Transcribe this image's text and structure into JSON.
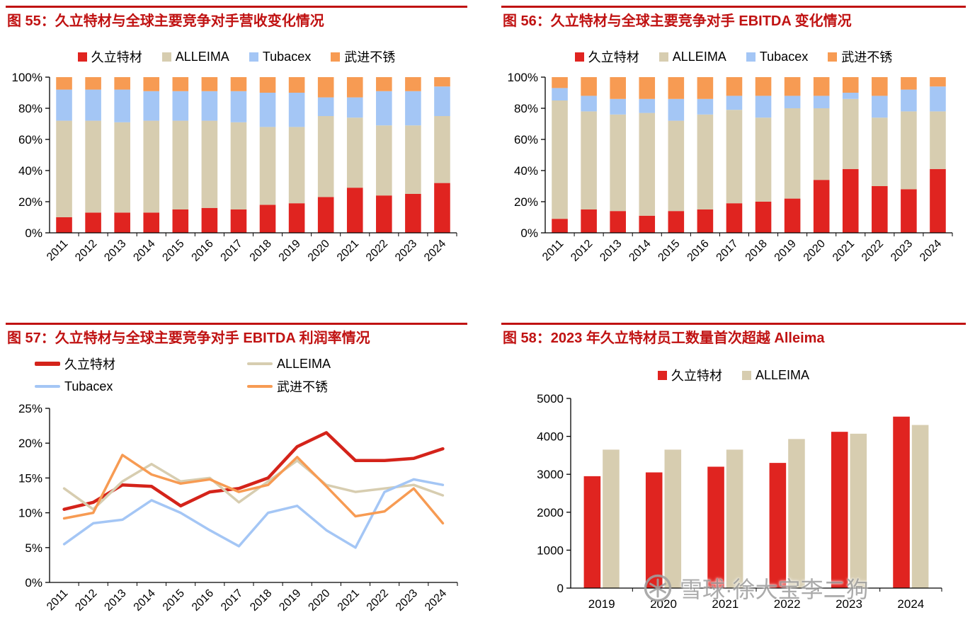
{
  "watermark": {
    "text": "雪球·徐大宝李二狗"
  },
  "chart_data": [
    {
      "type": "bar",
      "stacked": true,
      "title": "图 55：久立特材与全球主要竞争对手营收变化情况",
      "categories": [
        "2011",
        "2012",
        "2013",
        "2014",
        "2015",
        "2016",
        "2017",
        "2018",
        "2019",
        "2020",
        "2021",
        "2022",
        "2023",
        "2024"
      ],
      "series": [
        {
          "name": "久立特材",
          "key": "jiuli",
          "color": "#e02420",
          "values": [
            10,
            13,
            13,
            13,
            15,
            16,
            15,
            18,
            19,
            23,
            29,
            24,
            25,
            32
          ]
        },
        {
          "name": "ALLEIMA",
          "key": "alleima",
          "color": "#d7cdb0",
          "values": [
            62,
            59,
            58,
            59,
            57,
            56,
            56,
            50,
            49,
            52,
            45,
            45,
            44,
            43
          ]
        },
        {
          "name": "Tubacex",
          "key": "tubacex",
          "color": "#a4c6f5",
          "values": [
            20,
            20,
            21,
            19,
            19,
            19,
            20,
            22,
            22,
            12,
            13,
            22,
            22,
            19
          ]
        },
        {
          "name": "武进不锈",
          "key": "wujin",
          "color": "#f79b53",
          "values": [
            8,
            8,
            8,
            9,
            9,
            9,
            9,
            10,
            10,
            13,
            13,
            9,
            9,
            6
          ]
        }
      ],
      "ylim": [
        0,
        100
      ],
      "yticks": [
        0,
        20,
        40,
        60,
        80,
        100
      ],
      "ytick_suffix": "%",
      "legend_position": "top",
      "grid": false
    },
    {
      "type": "bar",
      "stacked": true,
      "title": "图 56：久立特材与全球主要竞争对手 EBITDA 变化情况",
      "categories": [
        "2011",
        "2012",
        "2013",
        "2014",
        "2015",
        "2016",
        "2017",
        "2018",
        "2019",
        "2020",
        "2021",
        "2022",
        "2023",
        "2024"
      ],
      "series": [
        {
          "name": "久立特材",
          "key": "jiuli",
          "color": "#e02420",
          "values": [
            9,
            15,
            14,
            11,
            14,
            15,
            19,
            20,
            22,
            34,
            41,
            30,
            28,
            41
          ]
        },
        {
          "name": "ALLEIMA",
          "key": "alleima",
          "color": "#d7cdb0",
          "values": [
            76,
            63,
            62,
            66,
            58,
            61,
            60,
            54,
            58,
            46,
            45,
            44,
            50,
            37
          ]
        },
        {
          "name": "Tubacex",
          "key": "tubacex",
          "color": "#a4c6f5",
          "values": [
            8,
            10,
            10,
            9,
            14,
            10,
            9,
            14,
            8,
            8,
            4,
            14,
            14,
            16
          ]
        },
        {
          "name": "武进不锈",
          "key": "wujin",
          "color": "#f79b53",
          "values": [
            7,
            12,
            14,
            14,
            14,
            14,
            12,
            12,
            12,
            12,
            10,
            12,
            8,
            6
          ]
        }
      ],
      "ylim": [
        0,
        100
      ],
      "yticks": [
        0,
        20,
        40,
        60,
        80,
        100
      ],
      "ytick_suffix": "%",
      "legend_position": "top",
      "grid": false
    },
    {
      "type": "line",
      "title": "图 57：久立特材与全球主要竞争对手 EBITDA 利润率情况",
      "categories": [
        "2011",
        "2012",
        "2013",
        "2014",
        "2015",
        "2016",
        "2017",
        "2018",
        "2019",
        "2020",
        "2021",
        "2022",
        "2023",
        "2024"
      ],
      "series": [
        {
          "name": "久立特材",
          "key": "jiuli",
          "color": "#d4231a",
          "width": 4.5,
          "values": [
            10.5,
            11.5,
            14.0,
            13.8,
            11.0,
            13.0,
            13.5,
            15.0,
            19.5,
            21.5,
            17.5,
            17.5,
            17.8,
            19.2
          ]
        },
        {
          "name": "ALLEIMA",
          "key": "alleima",
          "color": "#d7cdb0",
          "width": 3.5,
          "values": [
            13.5,
            10.5,
            14.5,
            17.0,
            14.5,
            15.0,
            11.5,
            14.5,
            17.5,
            14.0,
            13.0,
            13.5,
            14.0,
            12.5
          ]
        },
        {
          "name": "Tubacex",
          "key": "tubacex",
          "color": "#a4c6f5",
          "width": 3.5,
          "values": [
            5.5,
            8.5,
            9.0,
            11.8,
            10.0,
            7.5,
            5.2,
            10.0,
            11.0,
            7.5,
            5.0,
            13.0,
            14.8,
            14.0
          ]
        },
        {
          "name": "武进不锈",
          "key": "wujin",
          "color": "#f79b53",
          "width": 3.5,
          "values": [
            9.2,
            10.0,
            18.3,
            15.5,
            14.2,
            14.8,
            13.0,
            14.0,
            18.0,
            13.8,
            9.5,
            10.2,
            13.5,
            8.5
          ]
        }
      ],
      "ylim": [
        0,
        25
      ],
      "yticks": [
        0,
        5,
        10,
        15,
        20,
        25
      ],
      "ytick_suffix": "%",
      "legend_position": "top",
      "grid": false
    },
    {
      "type": "bar",
      "stacked": false,
      "title": "图 58：2023 年久立特材员工数量首次超越 Alleima",
      "categories": [
        "2019",
        "2020",
        "2021",
        "2022",
        "2023",
        "2024"
      ],
      "series": [
        {
          "name": "久立特材",
          "key": "jiuli",
          "color": "#e02420",
          "values": [
            2950,
            3050,
            3200,
            3300,
            4120,
            4520
          ]
        },
        {
          "name": "ALLEIMA",
          "key": "alleima",
          "color": "#d7cdb0",
          "values": [
            3650,
            3650,
            3650,
            3930,
            4070,
            4300
          ]
        }
      ],
      "ylim": [
        0,
        5000
      ],
      "yticks": [
        0,
        1000,
        2000,
        3000,
        4000,
        5000
      ],
      "ytick_suffix": "",
      "legend_position": "top",
      "grid": false
    }
  ]
}
